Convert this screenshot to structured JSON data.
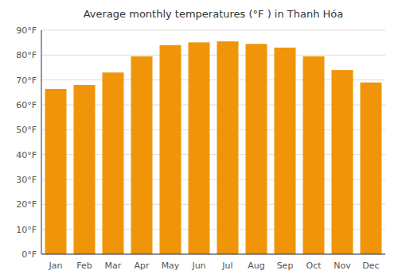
{
  "chart_data": {
    "type": "bar",
    "title": "Average monthly temperatures (°F ) in Thanh Hóa",
    "categories": [
      "Jan",
      "Feb",
      "Mar",
      "Apr",
      "May",
      "Jun",
      "Jul",
      "Aug",
      "Sep",
      "Oct",
      "Nov",
      "Dec"
    ],
    "values": [
      66.4,
      68.0,
      73.0,
      79.5,
      84.0,
      85.1,
      85.5,
      84.5,
      83.0,
      79.5,
      74.0,
      69.0
    ],
    "color": "#F0950A",
    "ylim": [
      0,
      90
    ],
    "yticks": [
      {
        "value": 0,
        "label": "0°F"
      },
      {
        "value": 10,
        "label": "10°F"
      },
      {
        "value": 20,
        "label": "20°F"
      },
      {
        "value": 30,
        "label": "30°F"
      },
      {
        "value": 40,
        "label": "40°F"
      },
      {
        "value": 50,
        "label": "50°F"
      },
      {
        "value": 60,
        "label": "60°F"
      },
      {
        "value": 70,
        "label": "70°F"
      },
      {
        "value": 80,
        "label": "80°F"
      },
      {
        "value": 90,
        "label": "90°F"
      }
    ],
    "grid": true
  }
}
